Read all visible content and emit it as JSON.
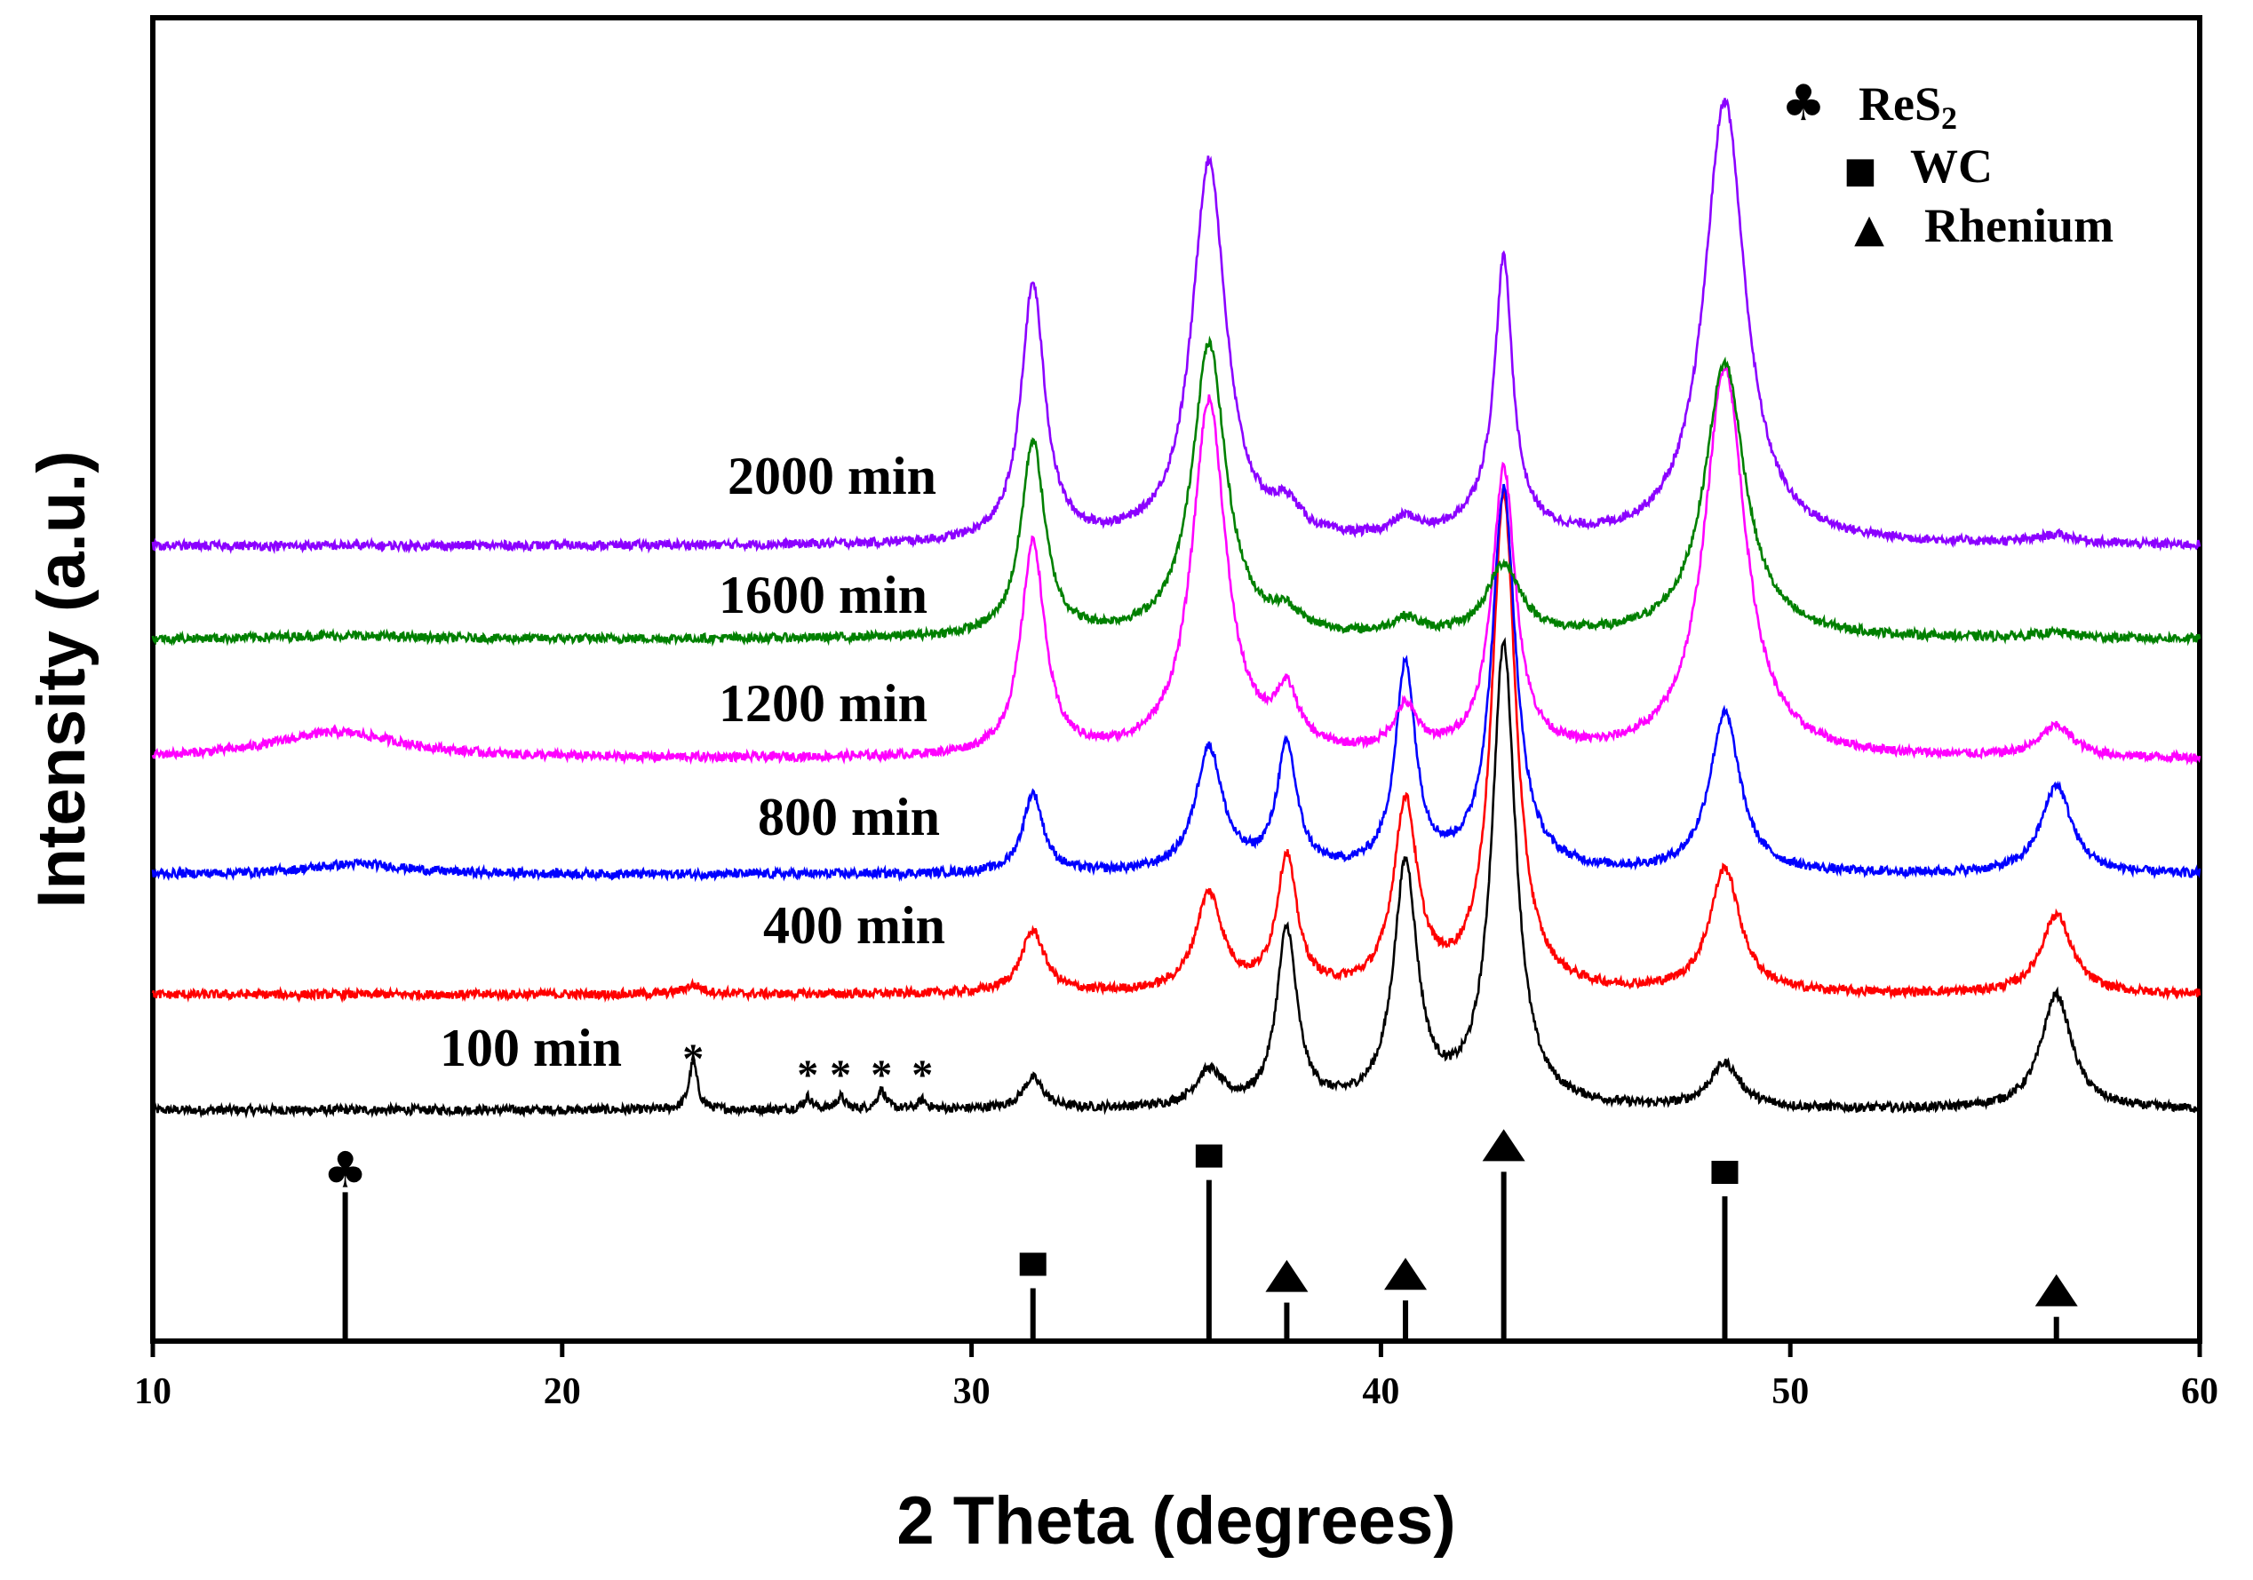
{
  "chart_data": {
    "type": "line",
    "title": "",
    "xlabel": "2 Theta (degrees)",
    "ylabel": "Intensity (a.u.)",
    "xlim": [
      10,
      60
    ],
    "xticks": [
      10,
      20,
      30,
      40,
      50,
      60
    ],
    "grid": false,
    "series": [
      {
        "name": "100 min",
        "label": "100 min",
        "color": "#000000",
        "baseline": 0,
        "peaks": [
          [
            23.2,
            55,
            0.12
          ],
          [
            26.0,
            14,
            0.12
          ],
          [
            26.8,
            14,
            0.12
          ],
          [
            27.8,
            22,
            0.12
          ],
          [
            28.8,
            10,
            0.12
          ],
          [
            31.5,
            35,
            0.3
          ],
          [
            35.8,
            40,
            0.4
          ],
          [
            37.7,
            200,
            0.3
          ],
          [
            40.6,
            270,
            0.35
          ],
          [
            43.0,
            520,
            0.35
          ],
          [
            48.4,
            50,
            0.45
          ],
          [
            56.5,
            130,
            0.45
          ]
        ]
      },
      {
        "name": "400 min",
        "label": "400 min",
        "color": "#ff0000",
        "baseline": 130,
        "peaks": [
          [
            23.2,
            10,
            0.3
          ],
          [
            31.5,
            70,
            0.35
          ],
          [
            35.8,
            110,
            0.4
          ],
          [
            37.7,
            150,
            0.3
          ],
          [
            40.6,
            210,
            0.35
          ],
          [
            43.0,
            560,
            0.35
          ],
          [
            48.4,
            140,
            0.45
          ],
          [
            56.5,
            90,
            0.45
          ]
        ]
      },
      {
        "name": "800 min",
        "label": "800 min",
        "color": "#0000ff",
        "baseline": 265,
        "peaks": [
          [
            15.0,
            12,
            1.5
          ],
          [
            31.5,
            90,
            0.3
          ],
          [
            35.8,
            140,
            0.4
          ],
          [
            37.7,
            140,
            0.3
          ],
          [
            40.6,
            230,
            0.3
          ],
          [
            43.0,
            430,
            0.35
          ],
          [
            48.4,
            180,
            0.45
          ],
          [
            56.5,
            100,
            0.45
          ]
        ]
      },
      {
        "name": "1200 min",
        "label": "1200 min",
        "color": "#ff00ff",
        "baseline": 395,
        "peaks": [
          [
            14.5,
            30,
            2.0
          ],
          [
            31.5,
            240,
            0.35
          ],
          [
            35.8,
            400,
            0.5
          ],
          [
            37.7,
            60,
            0.35
          ],
          [
            40.6,
            50,
            0.35
          ],
          [
            43.0,
            320,
            0.35
          ],
          [
            48.4,
            440,
            0.6
          ],
          [
            56.5,
            35,
            0.5
          ]
        ]
      },
      {
        "name": "1600 min",
        "label": "1600 min",
        "color": "#008000",
        "baseline": 530,
        "peaks": [
          [
            14.5,
            4,
            2.0
          ],
          [
            31.5,
            220,
            0.35
          ],
          [
            35.8,
            330,
            0.5
          ],
          [
            37.7,
            20,
            0.4
          ],
          [
            40.6,
            18,
            0.4
          ],
          [
            43.0,
            80,
            0.5
          ],
          [
            48.4,
            310,
            0.6
          ],
          [
            56.5,
            6,
            0.6
          ]
        ]
      },
      {
        "name": "2000 min",
        "label": "2000 min",
        "color": "#8b00ff",
        "baseline": 635,
        "peaks": [
          [
            31.5,
            290,
            0.35
          ],
          [
            35.8,
            430,
            0.5
          ],
          [
            37.7,
            30,
            0.4
          ],
          [
            40.6,
            20,
            0.4
          ],
          [
            43.0,
            280,
            0.25
          ],
          [
            42.8,
            40,
            0.8
          ],
          [
            48.4,
            500,
            0.6
          ],
          [
            56.5,
            10,
            0.6
          ]
        ]
      }
    ],
    "reference_lines": [
      {
        "x": 14.7,
        "height": 0.72,
        "marker": "club"
      },
      {
        "x": 31.5,
        "height": 0.25,
        "marker": "square"
      },
      {
        "x": 35.8,
        "height": 0.78,
        "marker": "square"
      },
      {
        "x": 37.7,
        "height": 0.18,
        "marker": "triangle"
      },
      {
        "x": 40.6,
        "height": 0.19,
        "marker": "triangle"
      },
      {
        "x": 43.0,
        "height": 0.82,
        "marker": "triangle"
      },
      {
        "x": 48.4,
        "height": 0.7,
        "marker": "square"
      },
      {
        "x": 56.5,
        "height": 0.11,
        "marker": "triangle"
      }
    ],
    "asterisks": [
      23.2,
      26.0,
      26.8,
      27.8,
      28.8
    ],
    "asterisk_text": "*",
    "legend": {
      "position": "top-right",
      "entries": [
        {
          "marker": "club",
          "symbol": "♣",
          "text": "ReS",
          "sub": "2"
        },
        {
          "marker": "square",
          "symbol": "■",
          "text": "WC",
          "sub": ""
        },
        {
          "marker": "triangle",
          "symbol": "▲",
          "text": "Rhenium",
          "sub": ""
        }
      ]
    }
  }
}
